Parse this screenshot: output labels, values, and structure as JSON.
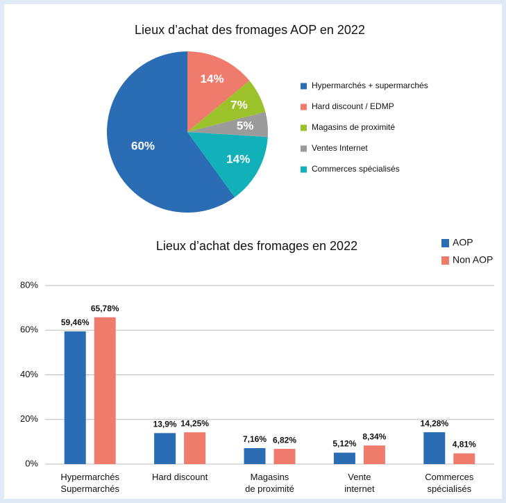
{
  "chart_data": [
    {
      "type": "pie",
      "title": "Lieux d’achat des fromages AOP en 2022",
      "categories": [
        "Hypermarchés + supermarchés",
        "Hard discount / EDMP",
        "Magasins de proximité",
        "Ventes Internet",
        "Commerces spécialisés"
      ],
      "values": [
        60,
        14,
        7,
        5,
        14
      ],
      "value_labels": [
        "60%",
        "14%",
        "7%",
        "5%",
        "14%"
      ],
      "colors": [
        "#2a6db5",
        "#ee7b6b",
        "#9bc22a",
        "#9b9b9b",
        "#12b0b8"
      ],
      "legend": "right"
    },
    {
      "type": "bar",
      "title": "Lieux d’achat des fromages en 2022",
      "categories": [
        [
          "Hypermarchés",
          "Supermarchés"
        ],
        [
          "Hard discount"
        ],
        [
          "Magasins",
          "de proximité"
        ],
        [
          "Vente",
          "internet"
        ],
        [
          "Commerces",
          "spécialisés"
        ]
      ],
      "series": [
        {
          "name": "AOP",
          "color": "#2a6db5",
          "values": [
            59.46,
            13.9,
            7.16,
            5.12,
            14.28
          ],
          "value_labels": [
            "59,46%",
            "13,9%",
            "7,16%",
            "5,12%",
            "14,28%"
          ]
        },
        {
          "name": "Non AOP",
          "color": "#ee7b6b",
          "values": [
            65.78,
            14.25,
            6.82,
            8.34,
            4.81
          ],
          "value_labels": [
            "65,78%",
            "14,25%",
            "6,82%",
            "8,34%",
            "4,81%"
          ]
        }
      ],
      "ylim": [
        0,
        80
      ],
      "yticks": [
        {
          "value": 0,
          "label": "0%"
        },
        {
          "value": 20,
          "label": "20%"
        },
        {
          "value": 40,
          "label": "40%"
        },
        {
          "value": 60,
          "label": "60%"
        },
        {
          "value": 80,
          "label": "80%"
        }
      ],
      "grid": true,
      "legend": "upper right"
    }
  ]
}
